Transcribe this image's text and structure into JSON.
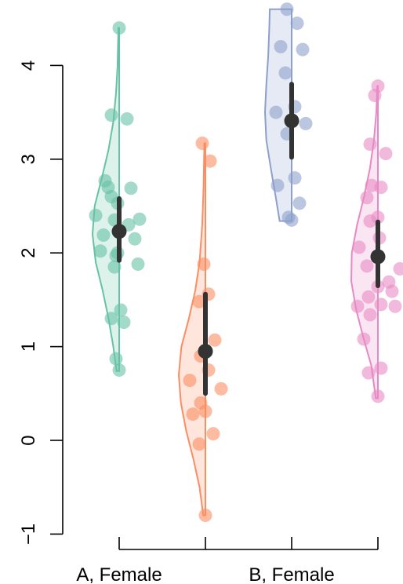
{
  "chart_data": {
    "type": "violin",
    "title": "",
    "xlabel": "",
    "ylabel": "",
    "ylim": [
      -1,
      4.6
    ],
    "yticks": [
      -1,
      0,
      1,
      2,
      3,
      4
    ],
    "ytick_labels": [
      "−1",
      "0",
      "1",
      "2",
      "3",
      "4"
    ],
    "xtick_labels": [
      "A, Female",
      "",
      "B, Female",
      ""
    ],
    "grid": false,
    "groups": [
      {
        "color": "#66c2a5",
        "side": "left",
        "range": [
          0.74,
          4.4
        ],
        "density": [
          [
            0.74,
            0.1
          ],
          [
            1.0,
            0.22
          ],
          [
            1.3,
            0.4
          ],
          [
            1.6,
            0.62
          ],
          [
            1.9,
            0.88
          ],
          [
            2.2,
            1.0
          ],
          [
            2.5,
            0.92
          ],
          [
            2.8,
            0.65
          ],
          [
            3.1,
            0.4
          ],
          [
            3.4,
            0.22
          ],
          [
            3.7,
            0.12
          ],
          [
            4.0,
            0.06
          ],
          [
            4.4,
            0.03
          ]
        ],
        "points": [
          4.4,
          3.47,
          3.43,
          2.77,
          2.7,
          2.69,
          2.6,
          2.53,
          2.4,
          2.36,
          2.35,
          2.3,
          2.22,
          2.19,
          2.15,
          2.02,
          2.0,
          1.97,
          1.88,
          1.85,
          1.39,
          1.3,
          1.26,
          0.87,
          0.75
        ],
        "mean": 2.23,
        "interval": [
          1.92,
          2.58
        ]
      },
      {
        "color": "#fc8d62",
        "side": "left",
        "range": [
          -0.8,
          3.17
        ],
        "density": [
          [
            -0.8,
            0.08
          ],
          [
            -0.5,
            0.22
          ],
          [
            -0.2,
            0.45
          ],
          [
            0.1,
            0.72
          ],
          [
            0.4,
            0.92
          ],
          [
            0.7,
            1.0
          ],
          [
            1.0,
            0.9
          ],
          [
            1.3,
            0.62
          ],
          [
            1.6,
            0.38
          ],
          [
            1.9,
            0.22
          ],
          [
            2.3,
            0.12
          ],
          [
            2.7,
            0.07
          ],
          [
            3.17,
            0.04
          ]
        ],
        "points": [
          3.17,
          2.98,
          1.88,
          1.56,
          1.48,
          1.07,
          0.9,
          0.75,
          0.64,
          0.55,
          0.4,
          0.31,
          0.28,
          0.07,
          -0.04,
          -0.8
        ],
        "mean": 0.95,
        "interval": [
          0.5,
          1.56
        ]
      },
      {
        "color": "#8da0cb",
        "side": "left",
        "range": [
          2.34,
          4.6
        ],
        "density": [
          [
            2.34,
            0.45
          ],
          [
            2.6,
            0.6
          ],
          [
            2.9,
            0.78
          ],
          [
            3.2,
            0.95
          ],
          [
            3.5,
            1.0
          ],
          [
            3.8,
            0.95
          ],
          [
            4.1,
            0.88
          ],
          [
            4.4,
            0.84
          ],
          [
            4.6,
            0.82
          ]
        ],
        "points": [
          4.6,
          4.45,
          4.2,
          4.17,
          3.92,
          3.56,
          3.5,
          3.38,
          3.27,
          2.8,
          2.72,
          2.53,
          2.38,
          2.35
        ],
        "mean": 3.41,
        "interval": [
          3.02,
          3.8
        ]
      },
      {
        "color": "#e78ac3",
        "side": "left",
        "range": [
          0.45,
          3.78
        ],
        "density": [
          [
            0.45,
            0.08
          ],
          [
            0.8,
            0.25
          ],
          [
            1.1,
            0.55
          ],
          [
            1.4,
            0.82
          ],
          [
            1.7,
            1.0
          ],
          [
            2.0,
            0.98
          ],
          [
            2.3,
            0.78
          ],
          [
            2.6,
            0.52
          ],
          [
            2.9,
            0.3
          ],
          [
            3.2,
            0.15
          ],
          [
            3.5,
            0.06
          ],
          [
            3.78,
            0.02
          ]
        ],
        "points": [
          3.78,
          3.68,
          3.16,
          3.06,
          2.72,
          2.7,
          2.59,
          2.38,
          2.34,
          2.16,
          2.06,
          1.96,
          1.86,
          1.83,
          1.69,
          1.64,
          1.59,
          1.53,
          1.45,
          1.43,
          1.43,
          1.34,
          1.08,
          0.77,
          0.72,
          0.47
        ],
        "mean": 1.96,
        "interval": [
          1.65,
          2.33
        ]
      }
    ]
  }
}
